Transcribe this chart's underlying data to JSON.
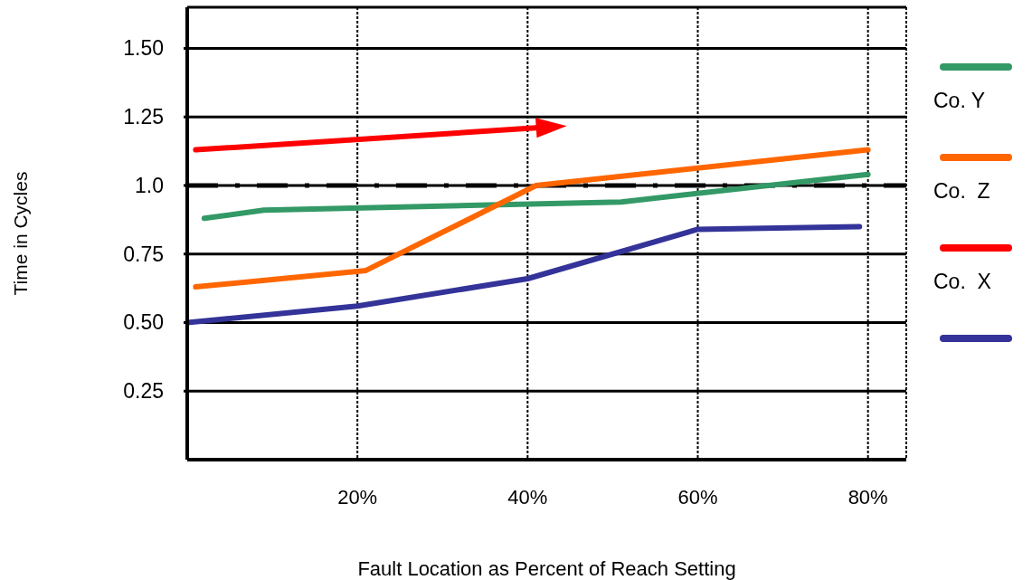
{
  "chart_data": {
    "type": "line",
    "xlabel": "Fault Location as Percent of Reach Setting",
    "ylabel": "Time in Cycles",
    "xlim": [
      0,
      84.5
    ],
    "xticks": [
      {
        "value": 20,
        "label": "20%"
      },
      {
        "value": 40,
        "label": "40%"
      },
      {
        "value": 60,
        "label": "60%"
      },
      {
        "value": 80,
        "label": "80%"
      }
    ],
    "ylim": [
      0,
      1.65
    ],
    "yticks": [
      0.25,
      {
        "value": 0.5,
        "label": "0.50"
      },
      0.75,
      {
        "value": 1,
        "label": "1.0"
      },
      1.25,
      {
        "value": 1.5,
        "label": "1.50"
      }
    ],
    "grid": true,
    "legend": "right",
    "marker": "none",
    "line_style": "solid",
    "ref_lines": [
      {
        "axis": "y",
        "value": 1,
        "color": "#000000",
        "line_style": "dashdot"
      }
    ],
    "series": [
      {
        "name": "Co. Y",
        "color": "#339966",
        "x": [
          2,
          9,
          51,
          80
        ],
        "values": [
          0.88,
          0.91,
          0.94,
          1.04
        ]
      },
      {
        "name": "Co.  Z",
        "color": "#ff6600",
        "x": [
          1,
          21,
          41,
          80
        ],
        "values": [
          0.63,
          0.69,
          1.0,
          1.13
        ]
      },
      {
        "name": "Co.  X",
        "color": "#ff0000",
        "x": [
          1,
          41
        ],
        "values": [
          1.13,
          1.21
        ]
      },
      {
        "color": "#333399",
        "x": [
          0,
          20,
          40,
          60,
          79
        ],
        "values": [
          0.5,
          0.56,
          0.66,
          0.84,
          0.85
        ]
      }
    ]
  }
}
